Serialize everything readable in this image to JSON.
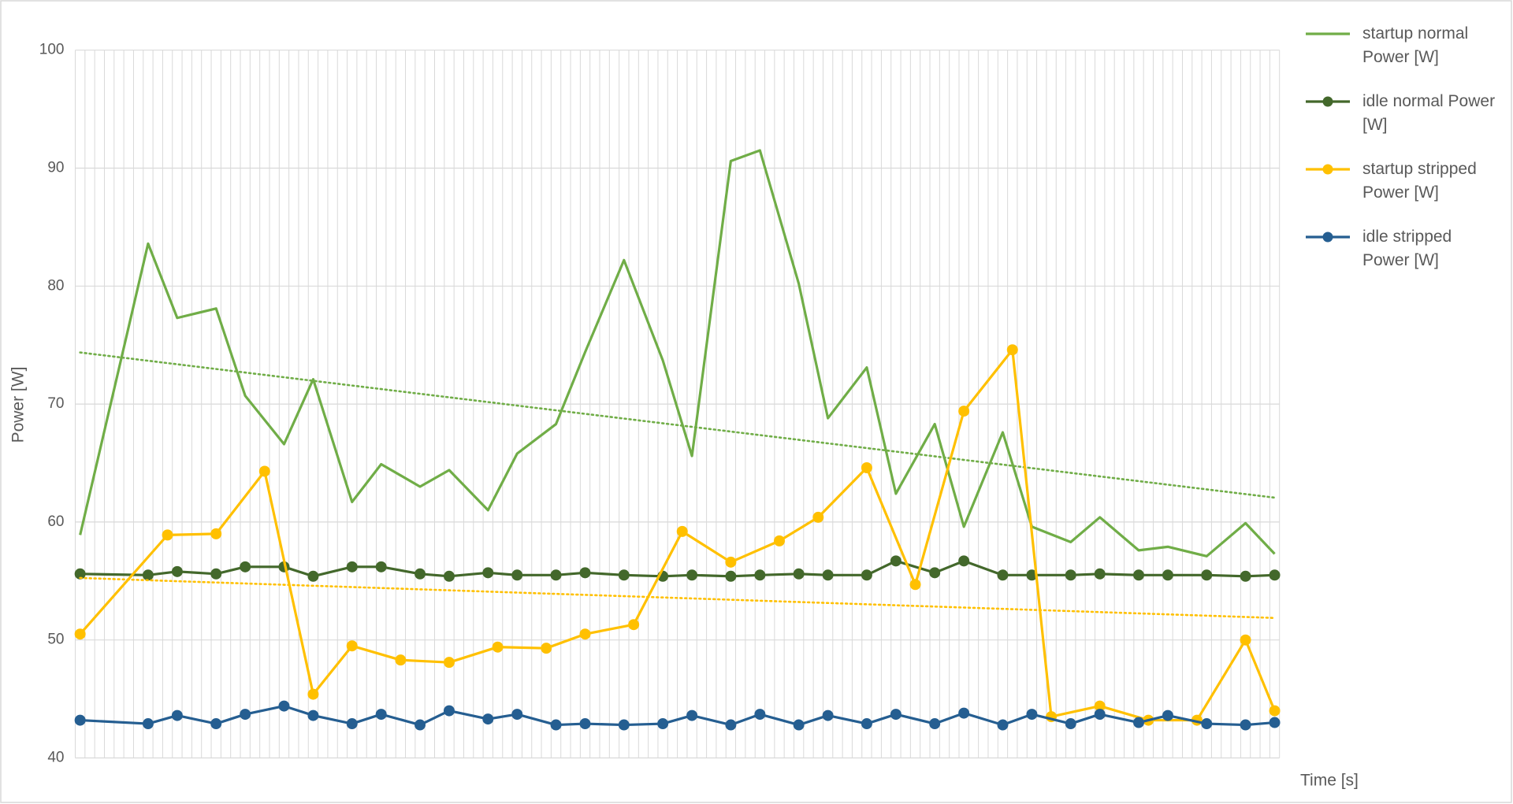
{
  "chart_data": {
    "type": "line",
    "x_label": "Time [s]",
    "y_label": "Power [W]",
    "xlim": [
      -0.5,
      123.5
    ],
    "xticks": [
      -0.5,
      0.5,
      1.5,
      2.5,
      3.5,
      4.5,
      5.5,
      6.5,
      7.5,
      8.5,
      9.5,
      10.5,
      11.5,
      12.5,
      13.5,
      14.5,
      15.5,
      16.5,
      17.5,
      18.5,
      19.5,
      20.5,
      21.5,
      22.5,
      23.5,
      24.5,
      25.5,
      26.5,
      27.5,
      28.5,
      29.5,
      30.5,
      31.5,
      32.5,
      33.5,
      34.5,
      35.5,
      36.5,
      37.5,
      38.5,
      39.5,
      40.5,
      41.5,
      42.5,
      43.5,
      44.5,
      45.5,
      46.5,
      47.5,
      48.5,
      49.5,
      50.5,
      51.5,
      52.5,
      53.5,
      54.5,
      55.5,
      56.5,
      57.5,
      58.5,
      59.5,
      60.5,
      61.5,
      62.5,
      63.5,
      64.5,
      65.5,
      66.5,
      67.5,
      68.5,
      69.5,
      70.5,
      71.5,
      72.5,
      73.5,
      74.5,
      75.5,
      76.5,
      77.5,
      78.5,
      79.5,
      80.5,
      81.5,
      82.5,
      83.5,
      84.5,
      85.5,
      86.5,
      87.5,
      88.5,
      89.5,
      90.5,
      91.5,
      92.5,
      93.5,
      94.5,
      95.5,
      96.5,
      97.5,
      98.5,
      99.5,
      100.5,
      101.5,
      102.5,
      103.5,
      104.5,
      105.5,
      106.5,
      107.5,
      108.5,
      109.5,
      110.5,
      111.5,
      112.5,
      113.5,
      114.5,
      115.5,
      116.5,
      117.5,
      118.5,
      119.5,
      120.5,
      121.5,
      122.5,
      123.5
    ],
    "ylim": [
      40,
      100
    ],
    "yticks": [
      40,
      50,
      60,
      70,
      80,
      90,
      100
    ],
    "grid": true,
    "legend": "right",
    "series": [
      {
        "name": "startup normal Power [W]",
        "color": "#70ad47",
        "markers": false,
        "trendline": "linear",
        "x": [
          0,
          7,
          10,
          14,
          17,
          21,
          24,
          28,
          31,
          35,
          38,
          42,
          45,
          49,
          52,
          56,
          60,
          63,
          67,
          70,
          74,
          77,
          81,
          84,
          88,
          91,
          95,
          98,
          102,
          105,
          109,
          112,
          116,
          120,
          123
        ],
        "values": [
          58.9,
          83.6,
          77.3,
          78.1,
          70.7,
          66.6,
          72.1,
          61.7,
          64.9,
          63.0,
          64.4,
          61.0,
          65.8,
          68.3,
          74.4,
          82.2,
          73.7,
          65.6,
          90.6,
          91.5,
          80.2,
          68.8,
          73.1,
          62.4,
          68.3,
          59.6,
          67.6,
          59.6,
          58.3,
          60.4,
          57.6,
          57.9,
          57.1,
          59.9,
          57.3
        ]
      },
      {
        "name": "idle normal Power [W]",
        "color": "#43682b",
        "markers": true,
        "x": [
          0,
          7,
          10,
          14,
          17,
          21,
          24,
          28,
          31,
          35,
          38,
          42,
          45,
          49,
          52,
          56,
          60,
          63,
          67,
          70,
          74,
          77,
          81,
          84,
          88,
          91,
          95,
          98,
          102,
          105,
          109,
          112,
          116,
          120,
          123
        ],
        "values": [
          55.6,
          55.5,
          55.8,
          55.6,
          56.2,
          56.2,
          55.4,
          56.2,
          56.2,
          55.6,
          55.4,
          55.7,
          55.5,
          55.5,
          55.7,
          55.5,
          55.4,
          55.5,
          55.4,
          55.5,
          55.6,
          55.5,
          55.5,
          56.7,
          55.7,
          56.7,
          55.5,
          55.5,
          55.5,
          55.6,
          55.5,
          55.5,
          55.5,
          55.4,
          55.5
        ]
      },
      {
        "name": "startup stripped Power [W]",
        "color": "#ffc000",
        "markers": true,
        "trendline": "linear",
        "x": [
          0,
          9,
          14,
          19,
          24,
          28,
          33,
          38,
          43,
          48,
          52,
          57,
          62,
          67,
          72,
          76,
          81,
          86,
          91,
          96,
          100,
          105,
          110,
          115,
          120,
          123
        ],
        "values": [
          50.5,
          58.9,
          59.0,
          64.3,
          45.4,
          49.5,
          48.3,
          48.1,
          49.4,
          49.3,
          50.5,
          51.3,
          59.2,
          56.6,
          58.4,
          60.4,
          64.6,
          54.7,
          69.4,
          74.6,
          43.5,
          44.4,
          43.2,
          43.2,
          50.0,
          44.0
        ]
      },
      {
        "name": "idle stripped Power [W]",
        "color": "#255e91",
        "markers": true,
        "x": [
          0,
          7,
          10,
          14,
          17,
          21,
          24,
          28,
          31,
          35,
          38,
          42,
          45,
          49,
          52,
          56,
          60,
          63,
          67,
          70,
          74,
          77,
          81,
          84,
          88,
          91,
          95,
          98,
          102,
          105,
          109,
          112,
          116,
          120,
          123
        ],
        "values": [
          43.2,
          42.9,
          43.6,
          42.9,
          43.7,
          44.4,
          43.6,
          42.9,
          43.7,
          42.8,
          44.0,
          43.3,
          43.7,
          42.8,
          42.9,
          42.8,
          42.9,
          43.6,
          42.8,
          43.7,
          42.8,
          43.6,
          42.9,
          43.7,
          42.9,
          43.8,
          42.8,
          43.7,
          42.9,
          43.7,
          43.0,
          43.6,
          42.9,
          42.8,
          43.0
        ]
      }
    ]
  }
}
